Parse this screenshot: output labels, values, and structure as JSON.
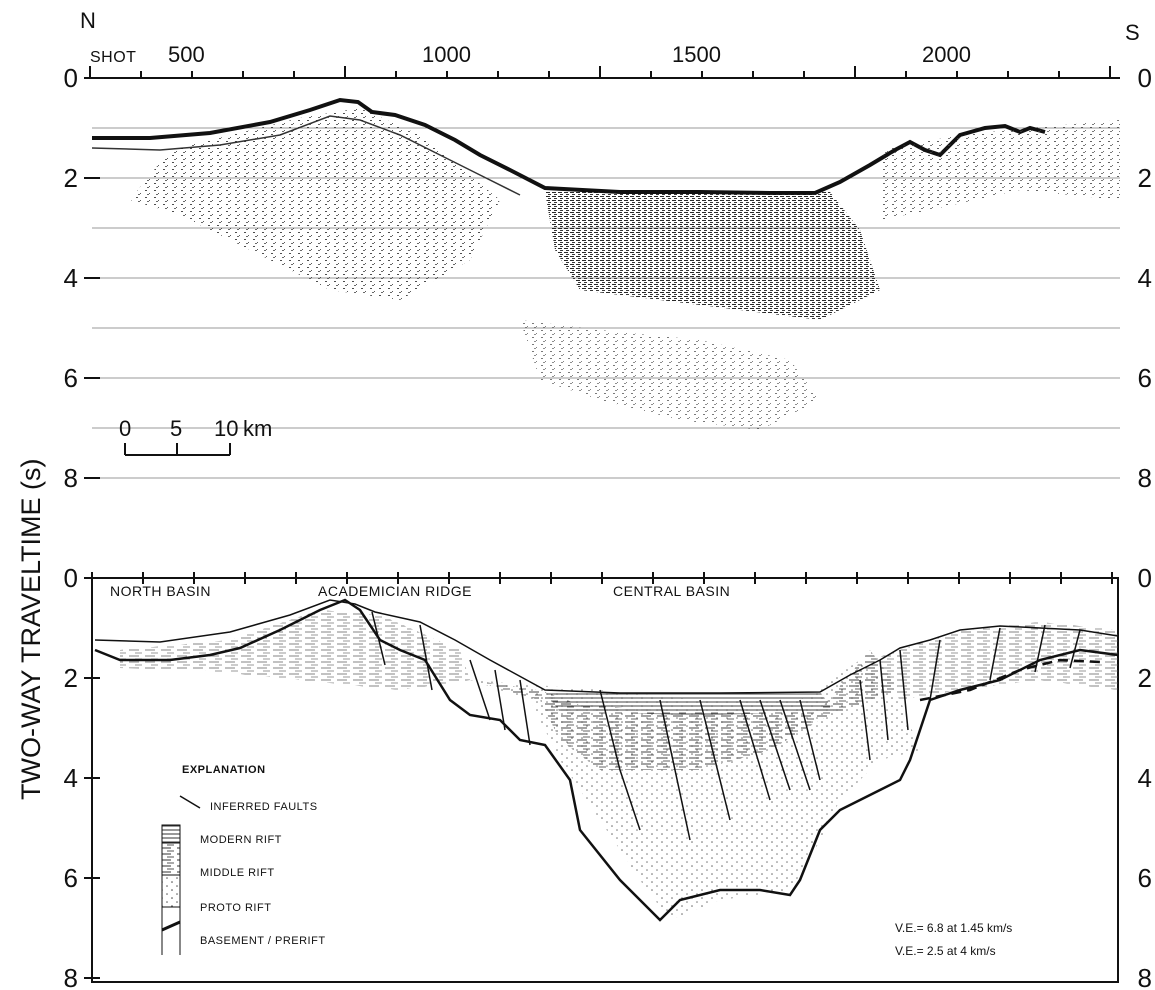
{
  "orientation": {
    "north": "N",
    "south": "S"
  },
  "shot_axis": {
    "prefix": "SHOT",
    "ticks": [
      "500",
      "1000",
      "1500",
      "2000"
    ]
  },
  "time_axis": {
    "label": "TWO-WAY TRAVELTIME (s)",
    "upper_ticks": [
      "0",
      "2",
      "4",
      "6",
      "8"
    ],
    "lower_ticks": [
      "0",
      "2",
      "4",
      "6",
      "8"
    ]
  },
  "scale_bar": {
    "ticks": [
      "0",
      "5",
      "10"
    ],
    "unit": "km"
  },
  "regions": [
    "NORTH BASIN",
    "ACADEMICIAN RIDGE",
    "CENTRAL BASIN"
  ],
  "explanation": {
    "title": "EXPLANATION",
    "items": [
      {
        "label": "INFERRED FAULTS",
        "symbol": "fault-line"
      },
      {
        "label": "MODERN RIFT",
        "symbol": "modern-rift-pattern"
      },
      {
        "label": "MIDDLE RIFT",
        "symbol": "middle-rift-pattern"
      },
      {
        "label": "PROTO RIFT",
        "symbol": "proto-rift-pattern"
      },
      {
        "label": "BASEMENT / PRERIFT",
        "symbol": "basement-line"
      }
    ]
  },
  "vertical_exaggeration": [
    "V.E.= 6.8 at 1.45 km/s",
    "V.E.= 2.5 at 4 km/s"
  ],
  "colors": {
    "ink": "#111111",
    "paper": "#ffffff",
    "grid": "#9a9a9a"
  }
}
